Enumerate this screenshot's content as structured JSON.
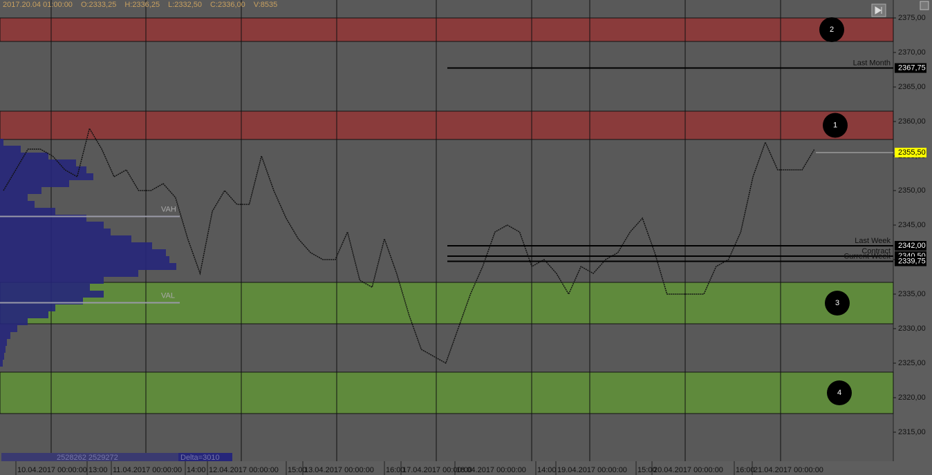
{
  "chart_data": {
    "type": "line",
    "header": [
      "2017.20.04 01:00:00",
      "O:2333,25",
      "H:2336,25",
      "L:2332,50",
      "C:2336,00",
      "V:8535"
    ],
    "ylim": [
      2377.6,
      2310.8
    ],
    "yticks": [
      {
        "value": 2375,
        "label": "2375,00"
      },
      {
        "value": 2370,
        "label": "2370,00"
      },
      {
        "value": 2365,
        "label": "2365,00"
      },
      {
        "value": 2360,
        "label": "2360,00"
      },
      {
        "value": 2355,
        "label": "2355,00"
      },
      {
        "value": 2350,
        "label": "2350,00"
      },
      {
        "value": 2345,
        "label": "2345,00"
      },
      {
        "value": 2340,
        "label": "2340,00"
      },
      {
        "value": 2335,
        "label": "2335,00"
      },
      {
        "value": 2330,
        "label": "2330,00"
      },
      {
        "value": 2325,
        "label": "2325,00"
      },
      {
        "value": 2320,
        "label": "2320,00"
      },
      {
        "value": 2315,
        "label": "2315,00"
      }
    ],
    "zones": [
      {
        "label": "2",
        "from": 2375,
        "to": 2371.6,
        "color": "#8a3b3b"
      },
      {
        "label": "1",
        "from": 2361.5,
        "to": 2357.4,
        "color": "#8a3b3b"
      },
      {
        "label": "3",
        "from": 2336.7,
        "to": 2330.7,
        "color": "#5f8a3c"
      },
      {
        "label": "4",
        "from": 2323.7,
        "to": 2317.7,
        "color": "#5f8a3c"
      }
    ],
    "levels": [
      {
        "name": "Last Month",
        "value": 2367.75,
        "label": "2367,75"
      },
      {
        "name": "Last Week",
        "value": 2342,
        "label": "2342,00"
      },
      {
        "name": "Contract",
        "value": 2340.5,
        "label": "2340,50"
      },
      {
        "name": "Current Week",
        "value": 2339.75,
        "label": "2339,75"
      }
    ],
    "last_price": {
      "value": 2355.5,
      "label": "2355,50"
    },
    "series": [
      {
        "name": "Price",
        "color": "#111111",
        "values": [
          2350,
          2353,
          2356,
          2356,
          2355,
          2353,
          2352,
          2359,
          2356,
          2352,
          2353,
          2350,
          2350,
          2351,
          2349,
          2343,
          2338,
          2347,
          2350,
          2348,
          2348,
          2355,
          2350,
          2346,
          2343,
          2341,
          2340,
          2340,
          2344,
          2337,
          2336,
          2343,
          2338,
          2332,
          2327,
          2326,
          2325,
          2330,
          2335,
          2339,
          2344,
          2345,
          2344,
          2339,
          2340,
          2338,
          2335,
          2339,
          2338,
          2340,
          2341,
          2344,
          2346,
          2341,
          2335,
          2335,
          2335,
          2335,
          2339,
          2340,
          2344,
          2352,
          2357,
          2353,
          2353,
          2353,
          2356
        ]
      }
    ],
    "profile": {
      "color": "#26267a",
      "prices": [
        2357,
        2356,
        2355,
        2354,
        2353,
        2352,
        2351,
        2350,
        2349,
        2348,
        2347,
        2346,
        2345,
        2344,
        2343,
        2342,
        2341,
        2340,
        2339,
        2338,
        2337,
        2336,
        2335,
        2334,
        2333,
        2332,
        2331,
        2330,
        2329,
        2328,
        2327,
        2326,
        2325
      ],
      "values": [
        5,
        30,
        70,
        110,
        125,
        135,
        100,
        60,
        40,
        50,
        80,
        125,
        150,
        160,
        190,
        220,
        240,
        245,
        255,
        200,
        150,
        130,
        150,
        120,
        80,
        70,
        40,
        25,
        15,
        10,
        8,
        6,
        4
      ]
    },
    "value_area": [
      {
        "label": "VAH",
        "value": 2346.25
      },
      {
        "label": "VAL",
        "value": 2333.75
      }
    ],
    "footer": [
      "2528262 2529272",
      "Delta=3010"
    ],
    "x_labels": [
      "10.04.2017 00:00:00",
      "13:00",
      "11.04.2017 00:00:00",
      "14:00",
      "12.04.2017 00:00:00",
      "15:00",
      "13.04.2017 00:00:00",
      "16:00",
      "17.04.2017 00:00:00",
      "18.04.2017 00:00:00",
      "14:00",
      "19.04.2017 00:00:00",
      "15:00",
      "20.04.2017 00:00:00",
      "16:00",
      "21.04.2017 00:00:00"
    ]
  }
}
